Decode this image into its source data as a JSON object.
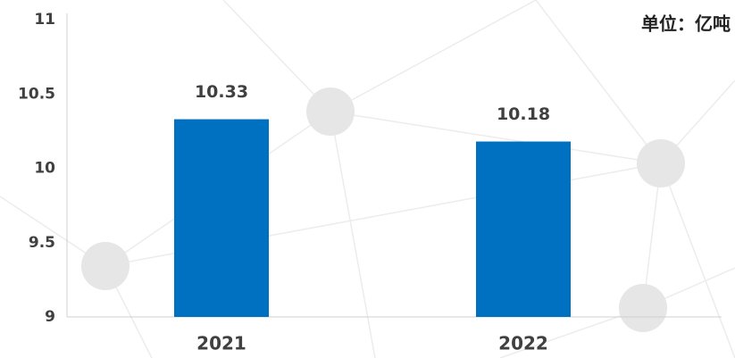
{
  "chart_data": {
    "type": "bar",
    "annotation": "单位：亿吨",
    "categories": [
      "2021",
      "2022"
    ],
    "values": [
      10.33,
      10.18
    ],
    "color": "#0070c0",
    "ylim": [
      9,
      11
    ],
    "yticks": [
      9,
      9.5,
      10,
      10.5,
      11
    ],
    "grid": false
  }
}
